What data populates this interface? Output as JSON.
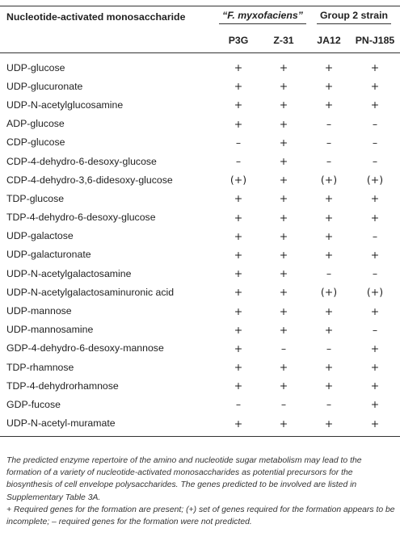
{
  "table": {
    "header": {
      "first_column": "Nucleotide-activated monosaccharide",
      "group_a": "“F. myxofaciens”",
      "group_b": "Group 2 strain",
      "columns": [
        "P3G",
        "Z-31",
        "JA12",
        "PN-J185"
      ]
    },
    "rows": [
      {
        "name": "UDP-glucose",
        "values": [
          "+",
          "+",
          "+",
          "+"
        ]
      },
      {
        "name": "UDP-glucuronate",
        "values": [
          "+",
          "+",
          "+",
          "+"
        ]
      },
      {
        "name": "UDP-N-acetylglucosamine",
        "values": [
          "+",
          "+",
          "+",
          "+"
        ]
      },
      {
        "name": "ADP-glucose",
        "values": [
          "+",
          "+",
          "–",
          "–"
        ]
      },
      {
        "name": "CDP-glucose",
        "values": [
          "–",
          "+",
          "–",
          "–"
        ]
      },
      {
        "name": "CDP-4-dehydro-6-desoxy-glucose",
        "values": [
          "–",
          "+",
          "–",
          "–"
        ]
      },
      {
        "name": "CDP-4-dehydro-3,6-didesoxy-glucose",
        "values": [
          "(+)",
          "+",
          "(+)",
          "(+)"
        ]
      },
      {
        "name": "TDP-glucose",
        "values": [
          "+",
          "+",
          "+",
          "+"
        ]
      },
      {
        "name": "TDP-4-dehydro-6-desoxy-glucose",
        "values": [
          "+",
          "+",
          "+",
          "+"
        ]
      },
      {
        "name": "UDP-galactose",
        "values": [
          "+",
          "+",
          "+",
          "–"
        ]
      },
      {
        "name": "UDP-galacturonate",
        "values": [
          "+",
          "+",
          "+",
          "+"
        ]
      },
      {
        "name": "UDP-N-acetylgalactosamine",
        "values": [
          "+",
          "+",
          "–",
          "–"
        ]
      },
      {
        "name": "UDP-N-acetylgalactosaminuronic acid",
        "values": [
          "+",
          "+",
          "(+)",
          "(+)"
        ]
      },
      {
        "name": "UDP-mannose",
        "values": [
          "+",
          "+",
          "+",
          "+"
        ]
      },
      {
        "name": "UDP-mannosamine",
        "values": [
          "+",
          "+",
          "+",
          "–"
        ]
      },
      {
        "name": "GDP-4-dehydro-6-desoxy-mannose",
        "values": [
          "+",
          "–",
          "–",
          "+"
        ]
      },
      {
        "name": "TDP-rhamnose",
        "values": [
          "+",
          "+",
          "+",
          "+"
        ]
      },
      {
        "name": "TDP-4-dehydrorhamnose",
        "values": [
          "+",
          "+",
          "+",
          "+"
        ]
      },
      {
        "name": "GDP-fucose",
        "values": [
          "–",
          "–",
          "–",
          "+"
        ]
      },
      {
        "name": "UDP-N-acetyl-muramate",
        "values": [
          "+",
          "+",
          "+",
          "+"
        ]
      }
    ]
  },
  "caption": {
    "paragraph": "The predicted enzyme repertoire of the amino and nucleotide sugar metabolism may lead to the formation of a variety of nucleotide-activated monosaccharides as potential precursors for the biosynthesis of cell envelope polysaccharides. The genes predicted to be involved are listed in Supplementary Table 3A.",
    "legend": "+ Required genes for the formation are present; (+) set of genes required for the formation appears to be incomplete; – required genes for the formation were not predicted."
  }
}
